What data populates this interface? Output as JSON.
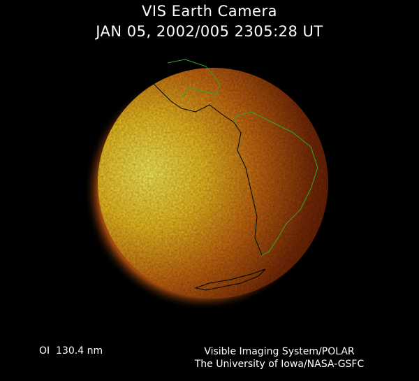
{
  "header": {
    "title": "VIS Earth Camera",
    "timestamp": "JAN 05, 2002/005 2305:28 UT"
  },
  "footer": {
    "filter": "OI  130.4 nm",
    "credit_line1": "Visible Imaging System/POLAR",
    "credit_line2": "The University of Iowa/NASA-GSFC"
  },
  "colors": {
    "background": "#000000",
    "dayside": "#f2d020",
    "nightside": "#4a0e02",
    "coastline_day": "#000000",
    "coastline_night": "#2faa2f"
  }
}
